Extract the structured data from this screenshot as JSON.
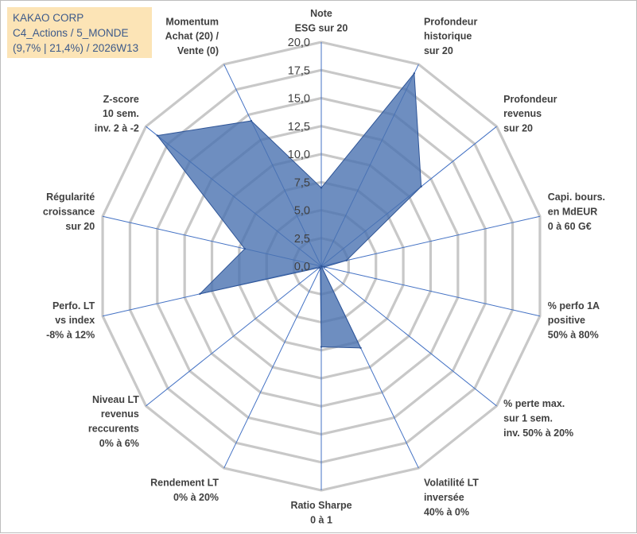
{
  "header": {
    "line1": "KAKAO CORP",
    "line2": "C4_Actions / 5_MONDE",
    "line3": "(9,7% | 21,4%) / 2026W13"
  },
  "chart_data": {
    "type": "radar",
    "rmin": 0,
    "rmax": 20,
    "tick_step": 2.5,
    "ticks": [
      "0,0",
      "2,5",
      "5,0",
      "7,5",
      "10,0",
      "12,5",
      "15,0",
      "17,5",
      "20,0"
    ],
    "colors": {
      "grid": "#c8c8c8",
      "spoke": "#4472c4",
      "fill": "#4a72b0",
      "outline": "#2f5597"
    },
    "axes": [
      {
        "lines": [
          "Note",
          "ESG sur 20"
        ],
        "value": 7.0
      },
      {
        "lines": [
          "Profondeur",
          "historique",
          "sur 20"
        ],
        "value": 19.1
      },
      {
        "lines": [
          "Profondeur",
          "revenus",
          "sur 20"
        ],
        "value": 11.4
      },
      {
        "lines": [
          "Capi. bours.",
          "en MdEUR",
          "0 à 60 G€"
        ],
        "value": 2.3
      },
      {
        "lines": [
          "% perfo 1A",
          "positive",
          "50% à 80%"
        ],
        "value": 0.3
      },
      {
        "lines": [
          "% perte max.",
          "sur 1 sem.",
          "inv. 50% à 20%"
        ],
        "value": 0.0
      },
      {
        "lines": [
          "Volatilité LT",
          "inversée",
          "40% à 0%"
        ],
        "value": 8.1
      },
      {
        "lines": [
          "Ratio Sharpe",
          "0 à 1"
        ],
        "value": 7.2
      },
      {
        "lines": [
          "Rendement LT",
          "0% à 20%"
        ],
        "value": 0.2
      },
      {
        "lines": [
          "Niveau LT",
          "revenus",
          "reccurents",
          "0% à 6%"
        ],
        "value": 0.2
      },
      {
        "lines": [
          "Perfo. LT",
          "vs index",
          "-8% à 12%"
        ],
        "value": 11.1
      },
      {
        "lines": [
          "Régularité",
          "croissance",
          "sur 20"
        ],
        "value": 7.0
      },
      {
        "lines": [
          "Z-score",
          "10 sem.",
          "inv. 2 à -2"
        ],
        "value": 18.7
      },
      {
        "lines": [
          "Momentum",
          "Achat (20) /",
          "Vente (0)"
        ],
        "value": 14.4
      }
    ]
  }
}
